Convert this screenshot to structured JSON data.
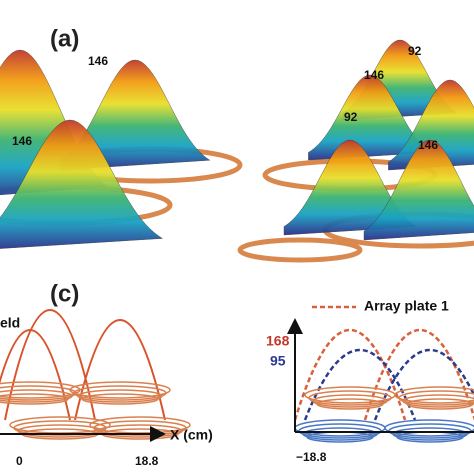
{
  "panel_a": {
    "label": "(a)",
    "peak_labels": [
      "146",
      "146",
      "92",
      "146",
      "92",
      "146"
    ]
  },
  "panel_c": {
    "label": "(c)",
    "left": {
      "legend_fragment": "eld",
      "axis_label": "X (cm)",
      "ticks": [
        "0",
        "18.8"
      ]
    },
    "right": {
      "legend": "Array plate 1",
      "value_labels": [
        "168",
        "95"
      ],
      "tick": "−18.8"
    }
  }
}
